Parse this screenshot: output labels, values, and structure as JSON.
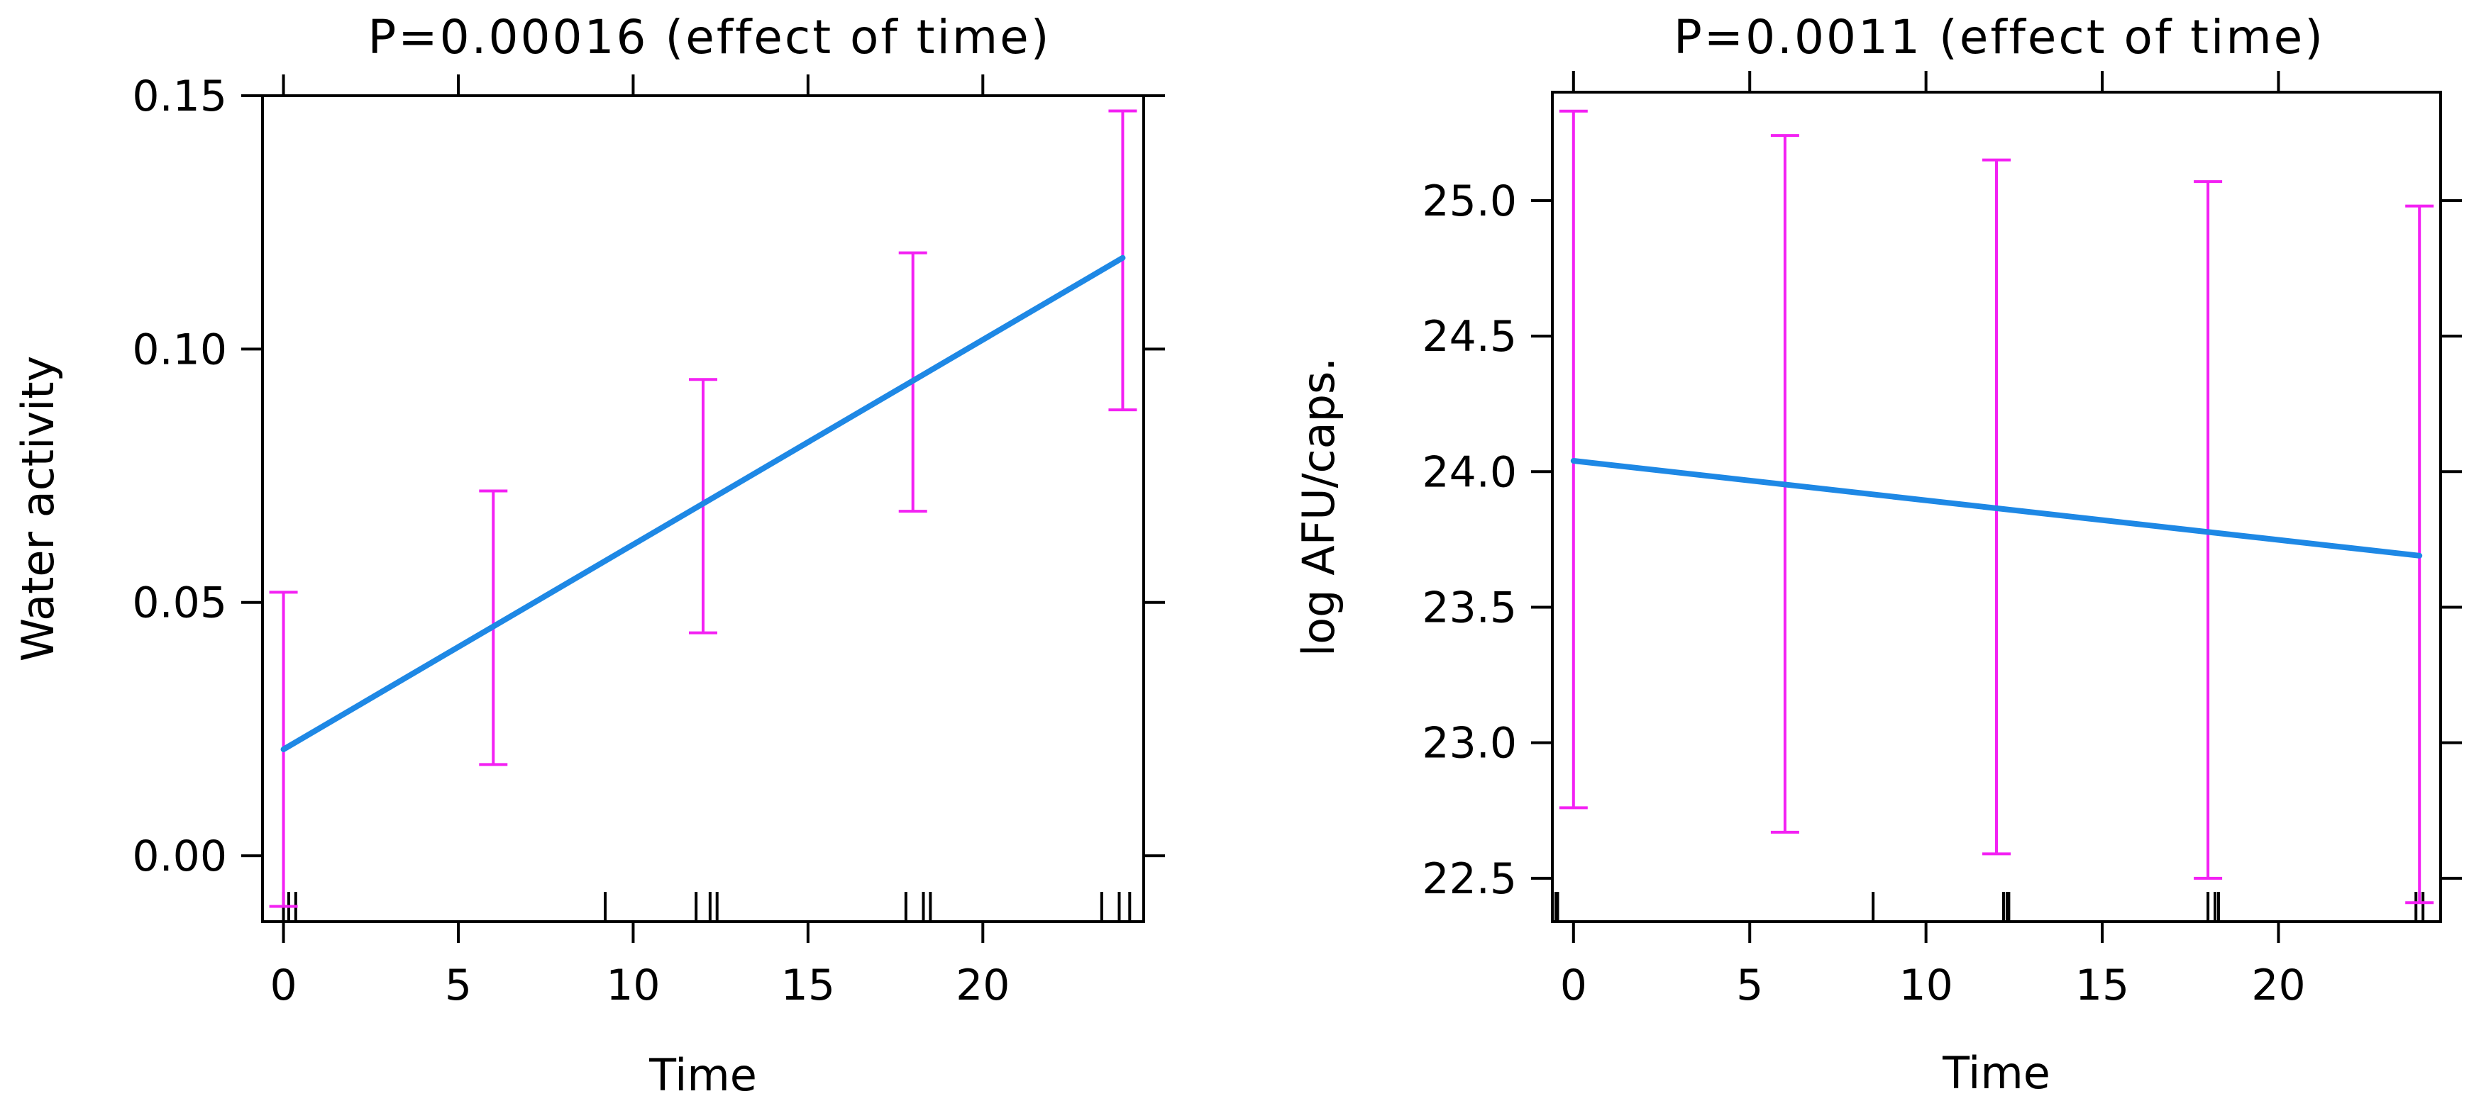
{
  "colors": {
    "fit_line": "#1e88e5",
    "error_bar": "#f321f3",
    "axis": "#000000",
    "rug": "#000000",
    "background": "#ffffff"
  },
  "chart_data": [
    {
      "type": "line",
      "title": "P=0.00016 (effect of time)",
      "xlabel": "Time",
      "ylabel": "Water activity",
      "xlim": [
        -0.6,
        24.6
      ],
      "ylim": [
        -0.013,
        0.15
      ],
      "xticks": [
        0,
        5,
        10,
        15,
        20
      ],
      "xtick_labels": [
        "0",
        "5",
        "10",
        "15",
        "20"
      ],
      "yticks": [
        0.0,
        0.05,
        0.1,
        0.15
      ],
      "ytick_labels": [
        "0.00",
        "0.05",
        "0.10",
        "0.15"
      ],
      "grid": false,
      "fit_line": {
        "x": [
          0,
          24
        ],
        "y": [
          0.021,
          0.118
        ]
      },
      "error_bars": [
        {
          "x": 0,
          "lower": -0.01,
          "upper": 0.052
        },
        {
          "x": 6,
          "lower": 0.018,
          "upper": 0.072
        },
        {
          "x": 12,
          "lower": 0.044,
          "upper": 0.094
        },
        {
          "x": 18,
          "lower": 0.068,
          "upper": 0.119
        },
        {
          "x": 24,
          "lower": 0.088,
          "upper": 0.147
        }
      ],
      "rug_x": [
        0,
        0.15,
        0.35,
        9.2,
        11.8,
        12.2,
        12.4,
        17.8,
        18.3,
        18.5,
        23.4,
        23.9,
        24.2
      ]
    },
    {
      "type": "line",
      "title": "P=0.0011 (effect of time)",
      "xlabel": "Time",
      "ylabel": "log AFU/caps.",
      "xlim": [
        -0.6,
        24.6
      ],
      "ylim": [
        22.34,
        25.4
      ],
      "xticks": [
        0,
        5,
        10,
        15,
        20
      ],
      "xtick_labels": [
        "0",
        "5",
        "10",
        "15",
        "20"
      ],
      "yticks": [
        22.5,
        23.0,
        23.5,
        24.0,
        24.5,
        25.0
      ],
      "ytick_labels": [
        "22.5",
        "23.0",
        "23.5",
        "24.0",
        "24.5",
        "25.0"
      ],
      "grid": false,
      "fit_line": {
        "x": [
          0,
          24
        ],
        "y": [
          24.04,
          23.69
        ]
      },
      "error_bars": [
        {
          "x": 0,
          "lower": 22.76,
          "upper": 25.33
        },
        {
          "x": 6,
          "lower": 22.67,
          "upper": 25.24
        },
        {
          "x": 12,
          "lower": 22.59,
          "upper": 25.15
        },
        {
          "x": 18,
          "lower": 22.5,
          "upper": 25.07
        },
        {
          "x": 24,
          "lower": 22.41,
          "upper": 24.98
        }
      ],
      "rug_x": [
        -0.5,
        -0.45,
        8.5,
        12.2,
        12.3,
        12.35,
        18.0,
        18.2,
        18.3,
        23.9,
        24.1
      ]
    }
  ]
}
